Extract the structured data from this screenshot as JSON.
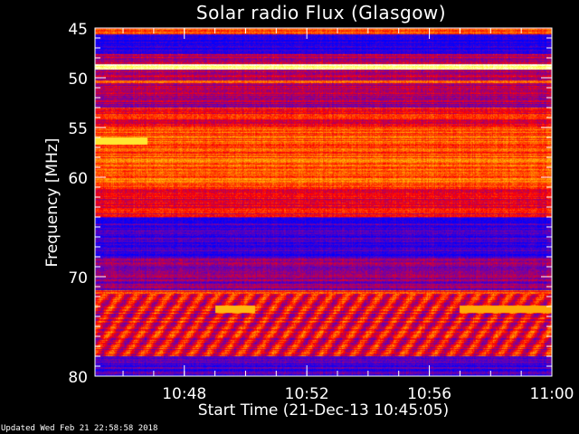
{
  "chart_data": {
    "type": "heatmap",
    "title": "Solar radio Flux (Glasgow)",
    "xlabel": "Start Time (21-Dec-13 10:45:05)",
    "ylabel": "Frequency [MHz]",
    "xlim": [
      "10:45:05",
      "11:00:00"
    ],
    "ylim": [
      45,
      80
    ],
    "y_inverted": true,
    "x_ticks": [
      "10:48",
      "10:52",
      "10:56",
      "11:00"
    ],
    "y_ticks": [
      45,
      50,
      55,
      60,
      70,
      80
    ],
    "colormap": [
      "#0000ff",
      "#6a00b0",
      "#ff0000",
      "#ffa000",
      "#ffff40",
      "#ffffff"
    ],
    "frequency_bands_intensity": [
      {
        "from": 45,
        "to": 45.6,
        "level": 0.5
      },
      {
        "from": 45.6,
        "to": 47.6,
        "level": 0.05
      },
      {
        "from": 47.6,
        "to": 48.6,
        "level": 0.3
      },
      {
        "from": 48.6,
        "to": 49.1,
        "level": 0.9
      },
      {
        "from": 49.1,
        "to": 50.2,
        "level": 0.3
      },
      {
        "from": 50.2,
        "to": 50.5,
        "level": 0.55
      },
      {
        "from": 50.5,
        "to": 53,
        "level": 0.28
      },
      {
        "from": 53,
        "to": 55,
        "level": 0.4
      },
      {
        "from": 55,
        "to": 61,
        "level": 0.5
      },
      {
        "from": 61,
        "to": 64,
        "level": 0.38
      },
      {
        "from": 64,
        "to": 68,
        "level": 0.12
      },
      {
        "from": 68,
        "to": 71.3,
        "level": 0.22
      },
      {
        "from": 71.3,
        "to": 71.7,
        "level": 0.45
      },
      {
        "from": 71.7,
        "to": 78,
        "level": 0.38
      },
      {
        "from": 78,
        "to": 80,
        "level": 0.12
      }
    ],
    "features": [
      {
        "freq": 56.3,
        "start_min": 0,
        "end_min": 1.7,
        "level": 0.75
      },
      {
        "freq": 73.2,
        "start_min": 3.9,
        "end_min": 5.2,
        "level": 0.65
      },
      {
        "freq": 73.2,
        "start_min": 11.9,
        "end_min": 14.9,
        "level": 0.62
      }
    ]
  },
  "footer": {
    "updated": "Updated Wed Feb 21 22:58:58 2018"
  }
}
